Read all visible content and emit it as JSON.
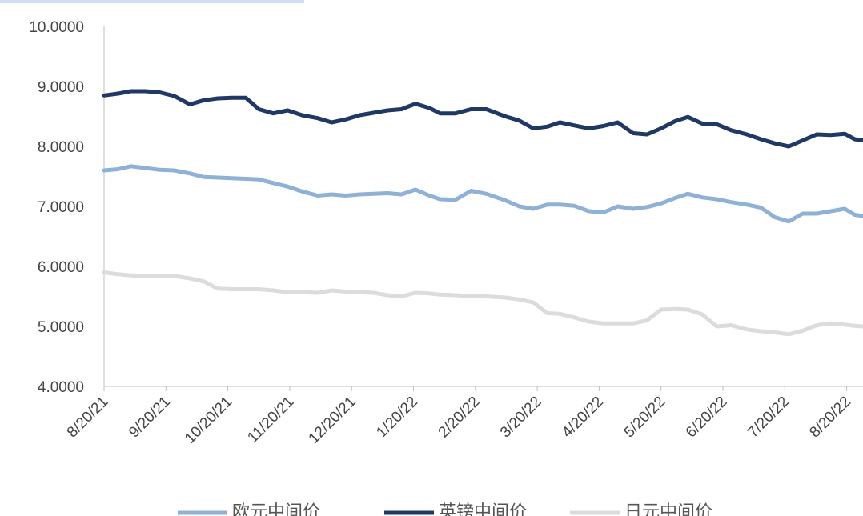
{
  "chart_data": {
    "type": "line",
    "title": "",
    "xlabel": "",
    "ylabel": "",
    "ylim": [
      4,
      10
    ],
    "y_ticks": [
      "4.0000",
      "5.0000",
      "6.0000",
      "7.0000",
      "8.0000",
      "9.0000",
      "10.0000"
    ],
    "x_ticks": [
      "8/20/21",
      "9/20/21",
      "10/20/21",
      "11/20/21",
      "12/20/21",
      "1/20/22",
      "2/20/22",
      "3/20/22",
      "4/20/22",
      "5/20/22",
      "6/20/22",
      "7/20/22",
      "8/20/22"
    ],
    "grid": false,
    "legend_position": "bottom",
    "series": [
      {
        "name": "欧元中间价",
        "color": "#8fb1d6",
        "points": [
          [
            "2021-08-20",
            7.6
          ],
          [
            "2021-08-27",
            7.62
          ],
          [
            "2021-09-03",
            7.67
          ],
          [
            "2021-09-10",
            7.64
          ],
          [
            "2021-09-17",
            7.61
          ],
          [
            "2021-09-24",
            7.6
          ],
          [
            "2021-10-01",
            7.55
          ],
          [
            "2021-10-08",
            7.49
          ],
          [
            "2021-10-15",
            7.48
          ],
          [
            "2021-10-22",
            7.47
          ],
          [
            "2021-10-29",
            7.46
          ],
          [
            "2021-11-05",
            7.45
          ],
          [
            "2021-11-12",
            7.39
          ],
          [
            "2021-11-19",
            7.33
          ],
          [
            "2021-11-26",
            7.25
          ],
          [
            "2021-12-03",
            7.18
          ],
          [
            "2021-12-10",
            7.2
          ],
          [
            "2021-12-17",
            7.18
          ],
          [
            "2021-12-24",
            7.2
          ],
          [
            "2021-12-31",
            7.21
          ],
          [
            "2022-01-07",
            7.22
          ],
          [
            "2022-01-14",
            7.2
          ],
          [
            "2022-01-21",
            7.28
          ],
          [
            "2022-01-28",
            7.18
          ],
          [
            "2022-02-04",
            7.12
          ],
          [
            "2022-02-11",
            7.11
          ],
          [
            "2022-02-18",
            7.26
          ],
          [
            "2022-02-25",
            7.21
          ],
          [
            "2022-03-04",
            7.1
          ],
          [
            "2022-03-11",
            7.0
          ],
          [
            "2022-03-18",
            6.96
          ],
          [
            "2022-03-25",
            7.03
          ],
          [
            "2022-04-01",
            7.03
          ],
          [
            "2022-04-08",
            7.01
          ],
          [
            "2022-04-15",
            6.92
          ],
          [
            "2022-04-22",
            6.9
          ],
          [
            "2022-04-29",
            7.0
          ],
          [
            "2022-05-06",
            6.96
          ],
          [
            "2022-05-13",
            6.99
          ],
          [
            "2022-05-20",
            7.05
          ],
          [
            "2022-05-27",
            7.14
          ],
          [
            "2022-06-03",
            7.21
          ],
          [
            "2022-06-10",
            7.15
          ],
          [
            "2022-06-17",
            7.12
          ],
          [
            "2022-06-24",
            7.07
          ],
          [
            "2022-07-01",
            7.03
          ],
          [
            "2022-07-08",
            6.98
          ],
          [
            "2022-07-15",
            6.82
          ],
          [
            "2022-07-22",
            6.75
          ],
          [
            "2022-07-29",
            6.88
          ],
          [
            "2022-08-05",
            6.88
          ],
          [
            "2022-08-12",
            6.92
          ],
          [
            "2022-08-19",
            6.96
          ],
          [
            "2022-08-24",
            6.86
          ],
          [
            "2022-08-31",
            6.84
          ]
        ]
      },
      {
        "name": "英镑中间价",
        "color": "#203864",
        "points": [
          [
            "2021-08-20",
            8.85
          ],
          [
            "2021-08-27",
            8.88
          ],
          [
            "2021-09-03",
            8.92
          ],
          [
            "2021-09-10",
            8.92
          ],
          [
            "2021-09-17",
            8.9
          ],
          [
            "2021-09-24",
            8.84
          ],
          [
            "2021-10-01",
            8.7
          ],
          [
            "2021-10-08",
            8.77
          ],
          [
            "2021-10-15",
            8.8
          ],
          [
            "2021-10-22",
            8.81
          ],
          [
            "2021-10-29",
            8.81
          ],
          [
            "2021-11-05",
            8.62
          ],
          [
            "2021-11-12",
            8.55
          ],
          [
            "2021-11-19",
            8.6
          ],
          [
            "2021-11-26",
            8.52
          ],
          [
            "2021-12-03",
            8.47
          ],
          [
            "2021-12-10",
            8.4
          ],
          [
            "2021-12-17",
            8.45
          ],
          [
            "2021-12-24",
            8.52
          ],
          [
            "2021-12-31",
            8.56
          ],
          [
            "2022-01-07",
            8.6
          ],
          [
            "2022-01-14",
            8.62
          ],
          [
            "2022-01-21",
            8.71
          ],
          [
            "2022-01-28",
            8.64
          ],
          [
            "2022-02-04",
            8.55
          ],
          [
            "2022-02-11",
            8.55
          ],
          [
            "2022-02-18",
            8.62
          ],
          [
            "2022-02-25",
            8.62
          ],
          [
            "2022-03-04",
            8.5
          ],
          [
            "2022-03-11",
            8.43
          ],
          [
            "2022-03-18",
            8.3
          ],
          [
            "2022-03-25",
            8.33
          ],
          [
            "2022-04-01",
            8.4
          ],
          [
            "2022-04-08",
            8.35
          ],
          [
            "2022-04-15",
            8.3
          ],
          [
            "2022-04-22",
            8.34
          ],
          [
            "2022-04-29",
            8.4
          ],
          [
            "2022-05-06",
            8.22
          ],
          [
            "2022-05-13",
            8.2
          ],
          [
            "2022-05-20",
            8.3
          ],
          [
            "2022-05-27",
            8.42
          ],
          [
            "2022-06-03",
            8.49
          ],
          [
            "2022-06-10",
            8.38
          ],
          [
            "2022-06-17",
            8.37
          ],
          [
            "2022-06-24",
            8.27
          ],
          [
            "2022-07-01",
            8.2
          ],
          [
            "2022-07-08",
            8.12
          ],
          [
            "2022-07-15",
            8.05
          ],
          [
            "2022-07-22",
            8.0
          ],
          [
            "2022-07-29",
            8.1
          ],
          [
            "2022-08-05",
            8.2
          ],
          [
            "2022-08-12",
            8.19
          ],
          [
            "2022-08-19",
            8.21
          ],
          [
            "2022-08-24",
            8.12
          ],
          [
            "2022-08-31",
            8.1
          ]
        ]
      },
      {
        "name": "日元中间价",
        "color": "#dcdcdc",
        "points": [
          [
            "2021-08-20",
            5.9
          ],
          [
            "2021-08-27",
            5.87
          ],
          [
            "2021-09-03",
            5.85
          ],
          [
            "2021-09-10",
            5.84
          ],
          [
            "2021-09-17",
            5.84
          ],
          [
            "2021-09-24",
            5.84
          ],
          [
            "2021-10-01",
            5.8
          ],
          [
            "2021-10-08",
            5.75
          ],
          [
            "2021-10-15",
            5.63
          ],
          [
            "2021-10-22",
            5.62
          ],
          [
            "2021-10-29",
            5.62
          ],
          [
            "2021-11-05",
            5.62
          ],
          [
            "2021-11-12",
            5.6
          ],
          [
            "2021-11-19",
            5.57
          ],
          [
            "2021-11-26",
            5.57
          ],
          [
            "2021-12-03",
            5.56
          ],
          [
            "2021-12-10",
            5.6
          ],
          [
            "2021-12-17",
            5.58
          ],
          [
            "2021-12-24",
            5.57
          ],
          [
            "2021-12-31",
            5.56
          ],
          [
            "2022-01-07",
            5.52
          ],
          [
            "2022-01-14",
            5.5
          ],
          [
            "2022-01-21",
            5.56
          ],
          [
            "2022-01-28",
            5.55
          ],
          [
            "2022-02-04",
            5.53
          ],
          [
            "2022-02-11",
            5.52
          ],
          [
            "2022-02-18",
            5.5
          ],
          [
            "2022-02-25",
            5.5
          ],
          [
            "2022-03-04",
            5.48
          ],
          [
            "2022-03-11",
            5.45
          ],
          [
            "2022-03-18",
            5.4
          ],
          [
            "2022-03-25",
            5.22
          ],
          [
            "2022-04-01",
            5.21
          ],
          [
            "2022-04-08",
            5.15
          ],
          [
            "2022-04-15",
            5.08
          ],
          [
            "2022-04-22",
            5.05
          ],
          [
            "2022-04-29",
            5.05
          ],
          [
            "2022-05-06",
            5.05
          ],
          [
            "2022-05-13",
            5.1
          ],
          [
            "2022-05-20",
            5.28
          ],
          [
            "2022-05-27",
            5.29
          ],
          [
            "2022-06-03",
            5.28
          ],
          [
            "2022-06-10",
            5.2
          ],
          [
            "2022-06-17",
            5.0
          ],
          [
            "2022-06-24",
            5.02
          ],
          [
            "2022-07-01",
            4.95
          ],
          [
            "2022-07-08",
            4.92
          ],
          [
            "2022-07-15",
            4.9
          ],
          [
            "2022-07-22",
            4.87
          ],
          [
            "2022-07-29",
            4.93
          ],
          [
            "2022-08-05",
            5.02
          ],
          [
            "2022-08-12",
            5.05
          ],
          [
            "2022-08-19",
            5.03
          ],
          [
            "2022-08-24",
            5.01
          ],
          [
            "2022-08-31",
            5.0
          ]
        ]
      }
    ]
  }
}
